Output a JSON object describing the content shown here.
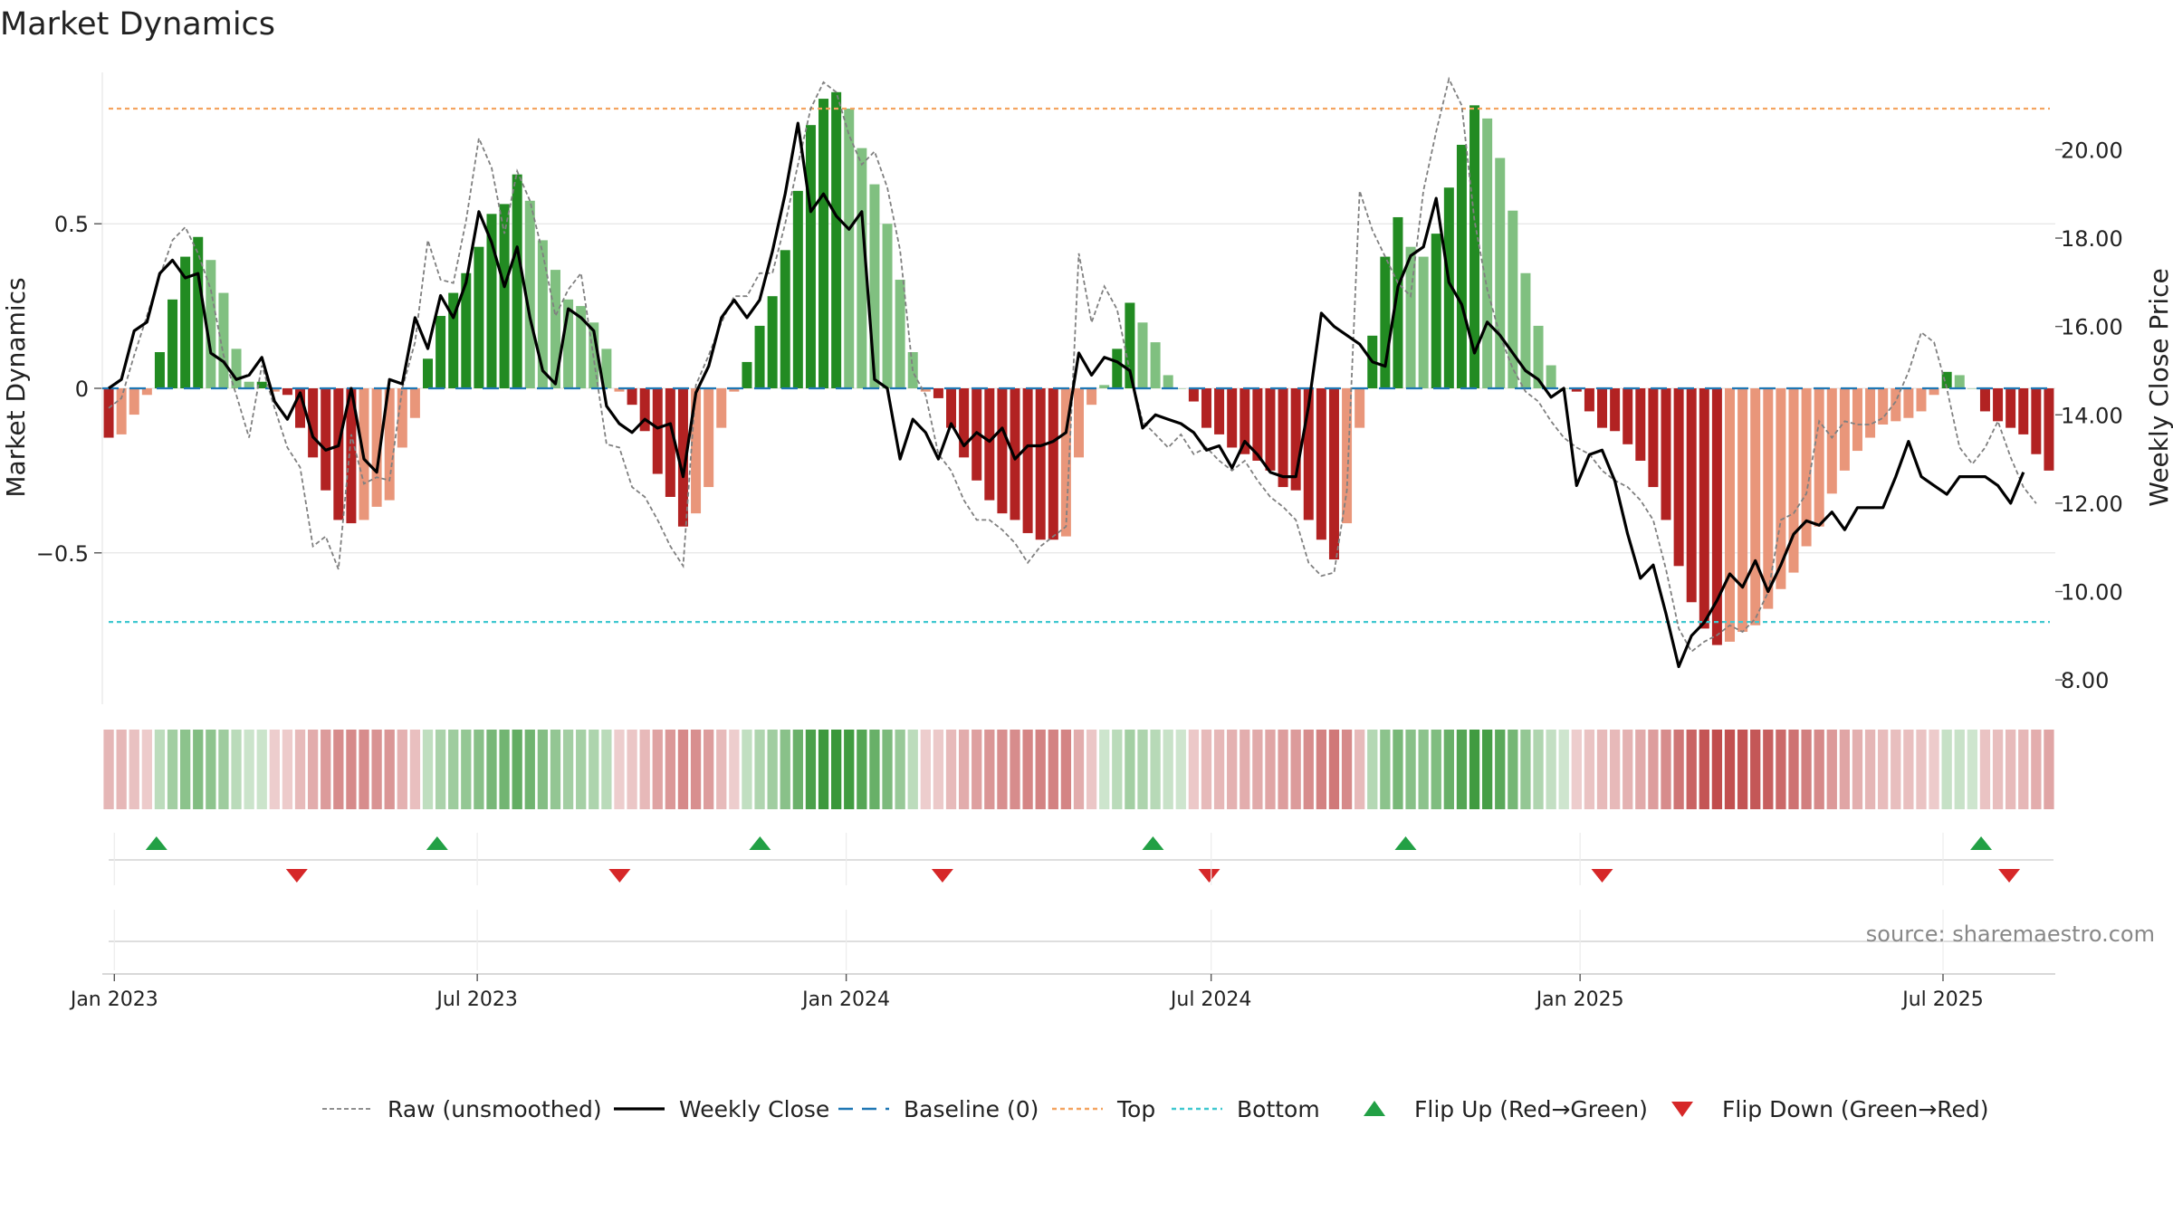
{
  "chart_data": {
    "type": "bar",
    "title": "Market Dynamics",
    "ylabel_left": "Market Dynamics",
    "ylabel_right": "Weekly Close Price",
    "source": "source: sharemaestro.com",
    "y_left": {
      "range": [
        -0.96,
        0.96
      ],
      "ticks": [
        0.5,
        0,
        -0.5
      ],
      "tick_labels": [
        "0.5",
        "0",
        "−0.5"
      ]
    },
    "y_right": {
      "range": [
        7.45,
        21.75
      ],
      "ticks": [
        8,
        10,
        12,
        14,
        16,
        18,
        20
      ],
      "tick_labels": [
        "8.00",
        "10.00",
        "12.00",
        "14.00",
        "16.00",
        "18.00",
        "20.00"
      ]
    },
    "x_axis": {
      "start": "2022-12-26",
      "end": "2025-08-26",
      "ticks": [
        {
          "date": "2023-01-01",
          "label": "Jan 2023"
        },
        {
          "date": "2023-07-01",
          "label": "Jul 2023"
        },
        {
          "date": "2024-01-01",
          "label": "Jan 2024"
        },
        {
          "date": "2024-07-01",
          "label": "Jul 2024"
        },
        {
          "date": "2025-01-01",
          "label": "Jan 2025"
        },
        {
          "date": "2025-07-01",
          "label": "Jul 2025"
        }
      ]
    },
    "top_level": 0.85,
    "bottom_level": -0.71,
    "series": [
      {
        "name": "Market Dynamics",
        "values": [
          -0.15,
          -0.14,
          -0.08,
          -0.02,
          0.11,
          0.27,
          0.4,
          0.46,
          0.39,
          0.29,
          0.12,
          0.02,
          0.02,
          -0.01,
          -0.02,
          -0.12,
          -0.21,
          -0.31,
          -0.4,
          -0.41,
          -0.4,
          -0.36,
          -0.34,
          -0.18,
          -0.09,
          0.09,
          0.22,
          0.29,
          0.35,
          0.43,
          0.53,
          0.56,
          0.65,
          0.57,
          0.45,
          0.36,
          0.27,
          0.25,
          0.2,
          0.12,
          -0.01,
          -0.05,
          -0.13,
          -0.26,
          -0.33,
          -0.42,
          -0.38,
          -0.3,
          -0.12,
          -0.01,
          0.08,
          0.19,
          0.28,
          0.42,
          0.6,
          0.8,
          0.88,
          0.9,
          0.85,
          0.73,
          0.62,
          0.5,
          0.33,
          0.11,
          -0.01,
          -0.03,
          -0.12,
          -0.21,
          -0.28,
          -0.34,
          -0.38,
          -0.4,
          -0.44,
          -0.46,
          -0.46,
          -0.45,
          -0.21,
          -0.05,
          0.01,
          0.12,
          0.26,
          0.2,
          0.14,
          0.04,
          0.0,
          -0.04,
          -0.12,
          -0.14,
          -0.18,
          -0.2,
          -0.22,
          -0.25,
          -0.3,
          -0.31,
          -0.4,
          -0.46,
          -0.52,
          -0.41,
          -0.12,
          0.16,
          0.4,
          0.52,
          0.43,
          0.4,
          0.47,
          0.61,
          0.74,
          0.86,
          0.82,
          0.7,
          0.54,
          0.35,
          0.19,
          0.07,
          0.0,
          -0.01,
          -0.07,
          -0.12,
          -0.13,
          -0.17,
          -0.22,
          -0.3,
          -0.4,
          -0.54,
          -0.65,
          -0.73,
          -0.78,
          -0.77,
          -0.74,
          -0.72,
          -0.67,
          -0.61,
          -0.56,
          -0.48,
          -0.42,
          -0.32,
          -0.25,
          -0.19,
          -0.15,
          -0.11,
          -0.1,
          -0.09,
          -0.07,
          -0.02,
          0.05,
          0.04,
          0.0,
          -0.07,
          -0.1,
          -0.12,
          -0.14,
          -0.2,
          -0.25
        ]
      },
      {
        "name": "Raw (unsmoothed)",
        "values": [
          -0.06,
          -0.03,
          0.1,
          0.22,
          0.34,
          0.45,
          0.49,
          0.41,
          0.3,
          0.1,
          -0.02,
          -0.15,
          0.07,
          -0.06,
          -0.18,
          -0.24,
          -0.48,
          -0.45,
          -0.55,
          -0.14,
          -0.29,
          -0.27,
          -0.28,
          0.0,
          0.14,
          0.45,
          0.33,
          0.32,
          0.51,
          0.76,
          0.67,
          0.47,
          0.66,
          0.57,
          0.41,
          0.22,
          0.3,
          0.35,
          0.09,
          -0.17,
          -0.18,
          -0.3,
          -0.33,
          -0.4,
          -0.48,
          -0.54,
          0.01,
          0.1,
          0.2,
          0.28,
          0.28,
          0.35,
          0.35,
          0.5,
          0.68,
          0.85,
          0.93,
          0.9,
          0.77,
          0.68,
          0.72,
          0.61,
          0.42,
          0.05,
          -0.02,
          -0.2,
          -0.25,
          -0.34,
          -0.4,
          -0.4,
          -0.43,
          -0.47,
          -0.53,
          -0.48,
          -0.45,
          -0.42,
          0.41,
          0.2,
          0.31,
          0.24,
          0.05,
          -0.1,
          -0.14,
          -0.18,
          -0.14,
          -0.2,
          -0.18,
          -0.22,
          -0.25,
          -0.22,
          -0.28,
          -0.33,
          -0.36,
          -0.4,
          -0.53,
          -0.57,
          -0.56,
          -0.31,
          0.6,
          0.48,
          0.4,
          0.32,
          0.28,
          0.6,
          0.78,
          0.94,
          0.86,
          0.51,
          0.3,
          0.16,
          0.06,
          -0.01,
          -0.04,
          -0.1,
          -0.15,
          -0.18,
          -0.2,
          -0.25,
          -0.28,
          -0.3,
          -0.34,
          -0.4,
          -0.55,
          -0.73,
          -0.8,
          -0.77,
          -0.75,
          -0.72,
          -0.74,
          -0.7,
          -0.62,
          -0.4,
          -0.38,
          -0.32,
          -0.1,
          -0.15,
          -0.1,
          -0.11,
          -0.11,
          -0.09,
          -0.04,
          0.05,
          0.17,
          0.14,
          0.0,
          -0.18,
          -0.23,
          -0.18,
          -0.1,
          -0.21,
          -0.3,
          -0.35
        ]
      },
      {
        "name": "Weekly Close",
        "values": [
          14.6,
          14.8,
          15.9,
          16.1,
          17.2,
          17.5,
          17.1,
          17.2,
          15.4,
          15.2,
          14.8,
          14.9,
          15.3,
          14.3,
          13.9,
          14.5,
          13.5,
          13.2,
          13.3,
          14.6,
          13.0,
          12.7,
          14.8,
          14.7,
          16.2,
          15.5,
          16.7,
          16.2,
          17.0,
          18.6,
          17.9,
          16.9,
          17.8,
          16.2,
          15.0,
          14.7,
          16.4,
          16.2,
          15.9,
          14.2,
          13.8,
          13.6,
          13.9,
          13.7,
          13.8,
          12.6,
          14.5,
          15.1,
          16.2,
          16.6,
          16.2,
          16.6,
          17.7,
          19.0,
          20.6,
          18.6,
          19.0,
          18.5,
          18.2,
          18.6,
          14.8,
          14.6,
          13.0,
          13.9,
          13.6,
          13.0,
          13.8,
          13.3,
          13.6,
          13.4,
          13.7,
          13.0,
          13.3,
          13.3,
          13.4,
          13.6,
          15.4,
          14.9,
          15.3,
          15.2,
          15.0,
          13.7,
          14.0,
          13.9,
          13.8,
          13.6,
          13.2,
          13.3,
          12.8,
          13.4,
          13.1,
          12.7,
          12.6,
          12.6,
          14.2,
          16.3,
          16.0,
          15.8,
          15.6,
          15.2,
          15.1,
          16.9,
          17.6,
          17.8,
          18.9,
          17.0,
          16.5,
          15.4,
          16.1,
          15.8,
          15.4,
          15.0,
          14.8,
          14.4,
          14.6,
          12.4,
          13.1,
          13.2,
          12.5,
          11.3,
          10.3,
          10.6,
          9.5,
          8.3,
          9.0,
          9.3,
          9.8,
          10.4,
          10.1,
          10.7,
          10.0,
          10.6,
          11.3,
          11.6,
          11.5,
          11.8,
          11.4,
          11.9,
          11.9,
          11.9,
          12.6,
          13.4,
          12.6,
          12.4,
          12.2,
          12.6,
          12.6,
          12.6,
          12.4,
          12.0,
          12.7
        ]
      },
      {
        "name": "Baseline (0)",
        "values": [
          0
        ]
      }
    ],
    "flip_up_dates": [
      "2023-01-22",
      "2023-06-11",
      "2023-11-19",
      "2024-06-02",
      "2024-10-06",
      "2025-07-20"
    ],
    "flip_down_dates": [
      "2023-04-02",
      "2023-09-10",
      "2024-02-18",
      "2024-06-30",
      "2025-01-12",
      "2025-08-03"
    ],
    "grid": true,
    "legend": {
      "placement": "bottom-center",
      "entries": [
        "Raw (unsmoothed)",
        "Weekly Close",
        "Baseline (0)",
        "Top",
        "Bottom",
        "Flip Up (Red→Green)",
        "Flip Down (Green→Red)"
      ]
    }
  },
  "colors": {
    "pos_strong": "#228b22",
    "pos_weak": "#80c080",
    "neg_strong": "#b22222",
    "neg_weak": "#e9967a",
    "raw": "#808080",
    "close": "#000000",
    "baseline": "#1f77b4",
    "top": "#f4a460",
    "bottom": "#40c8d0",
    "flip_up": "#22a045",
    "flip_down": "#d62728",
    "grid": "#e6e6e6"
  }
}
